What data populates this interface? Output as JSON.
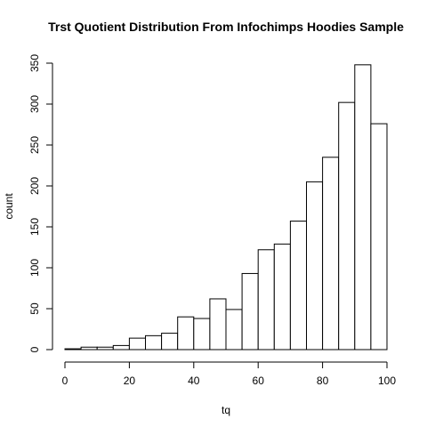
{
  "chart_data": {
    "type": "bar",
    "title": "Trst Quotient Distribution From Infochimps Hoodies Sample",
    "xlabel": "tq",
    "ylabel": "count",
    "bin_edges": [
      0,
      5,
      10,
      15,
      20,
      25,
      30,
      35,
      40,
      45,
      50,
      55,
      60,
      65,
      70,
      75,
      80,
      85,
      90,
      95,
      100
    ],
    "values": [
      1,
      3,
      3,
      5,
      14,
      17,
      20,
      40,
      38,
      62,
      49,
      93,
      122,
      129,
      157,
      205,
      235,
      302,
      348,
      276
    ],
    "xlim": [
      0,
      100
    ],
    "ylim": [
      0,
      350
    ],
    "x_ticks": [
      0,
      20,
      40,
      60,
      80,
      100
    ],
    "y_ticks": [
      0,
      50,
      100,
      150,
      200,
      250,
      300,
      350
    ],
    "grid": false
  }
}
